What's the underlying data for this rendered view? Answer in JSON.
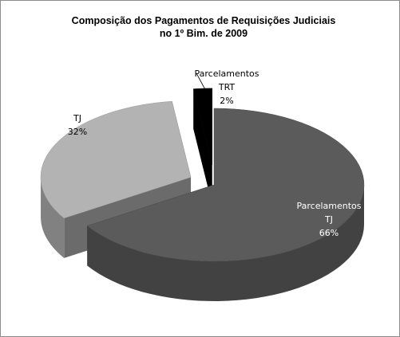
{
  "chart_data": {
    "type": "pie3d",
    "title": [
      "Composição dos Pagamentos de Requisições  Judiciais",
      "no 1º Bim. de 2009"
    ],
    "categories": [
      "Parcelamentos TJ",
      "TJ",
      "Parcelamentos TRT"
    ],
    "values": [
      66,
      32,
      2
    ],
    "value_labels": [
      "66%",
      "32%",
      "2%"
    ],
    "colors": [
      "#5b5b5b",
      "#b3b3b3",
      "#000000"
    ]
  }
}
